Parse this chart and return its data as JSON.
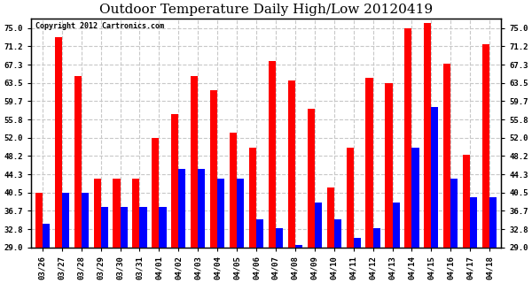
{
  "title": "Outdoor Temperature Daily High/Low 20120419",
  "copyright_text": "Copyright 2012 Cartronics.com",
  "categories": [
    "03/26",
    "03/27",
    "03/28",
    "03/29",
    "03/30",
    "03/31",
    "04/01",
    "04/02",
    "04/03",
    "04/04",
    "04/05",
    "04/06",
    "04/07",
    "04/08",
    "04/09",
    "04/10",
    "04/11",
    "04/12",
    "04/13",
    "04/14",
    "04/15",
    "04/16",
    "04/17",
    "04/18"
  ],
  "highs": [
    40.5,
    73.0,
    65.0,
    43.5,
    43.5,
    43.5,
    52.0,
    57.0,
    65.0,
    62.0,
    53.0,
    50.0,
    68.0,
    64.0,
    58.0,
    41.5,
    50.0,
    64.5,
    63.5,
    75.0,
    76.0,
    67.5,
    48.5,
    71.5
  ],
  "lows": [
    34.0,
    40.5,
    40.5,
    37.5,
    37.5,
    37.5,
    37.5,
    45.5,
    45.5,
    43.5,
    43.5,
    35.0,
    33.0,
    29.5,
    38.5,
    35.0,
    31.0,
    33.0,
    38.5,
    50.0,
    58.5,
    43.5,
    39.5,
    39.5
  ],
  "high_color": "#ff0000",
  "low_color": "#0000ff",
  "background_color": "#ffffff",
  "grid_color": "#c8c8c8",
  "title_fontsize": 11,
  "yticks": [
    29.0,
    32.8,
    36.7,
    40.5,
    44.3,
    48.2,
    52.0,
    55.8,
    59.7,
    63.5,
    67.3,
    71.2,
    75.0
  ],
  "ymin": 29.0,
  "ymax": 77.0,
  "bar_width": 0.37
}
